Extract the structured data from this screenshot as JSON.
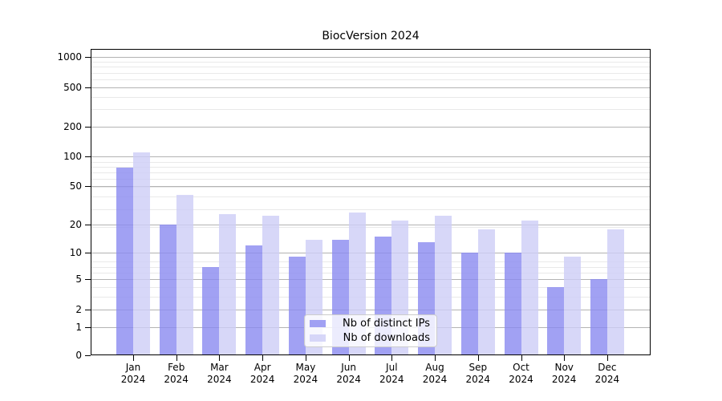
{
  "title": "BiocVersion 2024",
  "chart_data": {
    "type": "bar",
    "title": "BiocVersion 2024",
    "y_scale": "log10(1+x)",
    "grid": true,
    "legend_position": "inside-bottom-center",
    "ylim": [
      0,
      1150
    ],
    "y_ticks": [
      0,
      1,
      2,
      5,
      10,
      20,
      50,
      100,
      200,
      500,
      1000
    ],
    "x_ticks": [
      {
        "line1": "Jan",
        "line2": "2024"
      },
      {
        "line1": "Feb",
        "line2": "2024"
      },
      {
        "line1": "Mar",
        "line2": "2024"
      },
      {
        "line1": "Apr",
        "line2": "2024"
      },
      {
        "line1": "May",
        "line2": "2024"
      },
      {
        "line1": "Jun",
        "line2": "2024"
      },
      {
        "line1": "Jul",
        "line2": "2024"
      },
      {
        "line1": "Aug",
        "line2": "2024"
      },
      {
        "line1": "Sep",
        "line2": "2024"
      },
      {
        "line1": "Oct",
        "line2": "2024"
      },
      {
        "line1": "Nov",
        "line2": "2024"
      },
      {
        "line1": "Dec",
        "line2": "2024"
      }
    ],
    "categories": [
      "Jan 2024",
      "Feb 2024",
      "Mar 2024",
      "Apr 2024",
      "May 2024",
      "Jun 2024",
      "Jul 2024",
      "Aug 2024",
      "Sep 2024",
      "Oct 2024",
      "Nov 2024",
      "Dec 2024"
    ],
    "series": [
      {
        "name": "Nb of distinct IPs",
        "color": "#8a8af0",
        "values": [
          78,
          20,
          7,
          12,
          9,
          14,
          15,
          13,
          10,
          10,
          4,
          5
        ]
      },
      {
        "name": "Nb of downloads",
        "color": "#cdcdf6",
        "values": [
          110,
          41,
          26,
          25,
          14,
          27,
          22,
          25,
          18,
          22,
          9,
          18
        ]
      }
    ]
  },
  "colors": {
    "background": "#ffffff",
    "axis": "#000000",
    "grid_major": "#b3b3b3",
    "grid_minor": "#e9e9e9",
    "legend_border": "#cccccc"
  }
}
